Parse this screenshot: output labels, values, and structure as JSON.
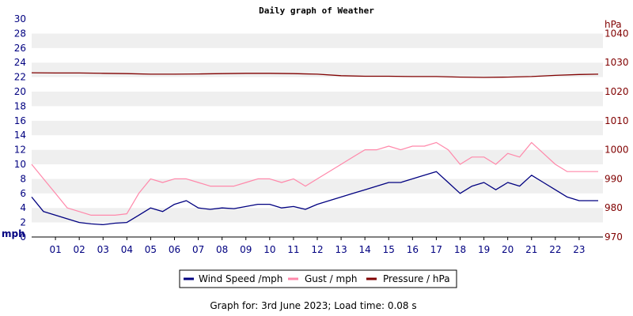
{
  "chart_data": {
    "type": "line",
    "title": "Daily graph of Weather",
    "left_axis": {
      "unit_label": "mph",
      "ylim": [
        0,
        30
      ],
      "ticks": [
        "0",
        "2",
        "4",
        "6",
        "8",
        "10",
        "12",
        "14",
        "16",
        "18",
        "20",
        "22",
        "24",
        "26",
        "28",
        "30"
      ]
    },
    "right_axis": {
      "unit_label": "hPa",
      "ylim": [
        970,
        1045
      ],
      "ticks": [
        "970",
        "980",
        "990",
        "1000",
        "1010",
        "1020",
        "1030",
        "1040"
      ]
    },
    "x_axis": {
      "range": [
        0,
        24
      ],
      "ticks": [
        "01",
        "02",
        "03",
        "04",
        "05",
        "06",
        "07",
        "08",
        "09",
        "10",
        "11",
        "12",
        "13",
        "14",
        "15",
        "16",
        "17",
        "18",
        "19",
        "20",
        "21",
        "22",
        "23"
      ]
    },
    "grid": "horizontal bands",
    "legend_position": "bottom-center",
    "series": [
      {
        "name": "Wind Speed /mph",
        "color": "#000080",
        "axis": "left",
        "x": [
          0,
          0.5,
          1,
          1.5,
          2,
          2.5,
          3,
          3.5,
          4,
          4.5,
          5,
          5.5,
          6,
          6.5,
          7,
          7.5,
          8,
          8.5,
          9,
          9.5,
          10,
          10.5,
          11,
          11.5,
          12,
          12.5,
          13,
          13.5,
          14,
          14.5,
          15,
          15.5,
          16,
          16.5,
          17,
          17.5,
          18,
          18.5,
          19,
          19.5,
          20,
          20.5,
          21,
          21.5,
          22,
          22.5,
          23,
          23.5,
          23.8
        ],
        "values": [
          5.5,
          3.5,
          3,
          2.5,
          2,
          1.8,
          1.7,
          1.9,
          2,
          3,
          4,
          3.5,
          4.5,
          5,
          4,
          3.8,
          4,
          3.9,
          4.2,
          4.5,
          4.5,
          4,
          4.2,
          3.8,
          4.5,
          5,
          5.5,
          6,
          6.5,
          7,
          7.5,
          7.5,
          8,
          8.5,
          9,
          7.5,
          6,
          7,
          7.5,
          6.5,
          7.5,
          7,
          8.5,
          7.5,
          6.5,
          5.5,
          5,
          5,
          5
        ]
      },
      {
        "name": "Gust / mph",
        "color": "#ff88aa",
        "axis": "left",
        "x": [
          0,
          0.5,
          1,
          1.5,
          2,
          2.5,
          3,
          3.5,
          4,
          4.5,
          5,
          5.5,
          6,
          6.5,
          7,
          7.5,
          8,
          8.5,
          9,
          9.5,
          10,
          10.5,
          11,
          11.5,
          12,
          12.5,
          13,
          13.5,
          14,
          14.5,
          15,
          15.5,
          16,
          16.5,
          17,
          17.5,
          18,
          18.5,
          19,
          19.5,
          20,
          20.5,
          21,
          21.5,
          22,
          22.5,
          23,
          23.5,
          23.8
        ],
        "values": [
          10,
          8,
          6,
          4,
          3.5,
          3,
          3,
          3,
          3.2,
          6,
          8,
          7.5,
          8,
          8,
          7.5,
          7,
          7,
          7,
          7.5,
          8,
          8,
          7.5,
          8,
          7,
          8,
          9,
          10,
          11,
          12,
          12,
          12.5,
          12,
          12.5,
          12.5,
          13,
          12,
          10,
          11,
          11,
          10,
          11.5,
          11,
          13,
          11.5,
          10,
          9,
          9,
          9,
          9
        ]
      },
      {
        "name": "Pressure / hPa",
        "color": "#800000",
        "axis": "right",
        "x": [
          0,
          1,
          2,
          3,
          4,
          5,
          6,
          7,
          8,
          9,
          10,
          11,
          12,
          13,
          14,
          15,
          16,
          17,
          18,
          19,
          20,
          21,
          22,
          23,
          23.8
        ],
        "values": [
          1026.5,
          1026.4,
          1026.4,
          1026.3,
          1026.2,
          1026,
          1026,
          1026.1,
          1026.2,
          1026.3,
          1026.3,
          1026.2,
          1026,
          1025.5,
          1025.3,
          1025.3,
          1025.2,
          1025.2,
          1025,
          1024.9,
          1025,
          1025.2,
          1025.6,
          1025.9,
          1026
        ]
      }
    ],
    "footer": "Graph for: 3rd June 2023; Load time: 0.08 s"
  }
}
